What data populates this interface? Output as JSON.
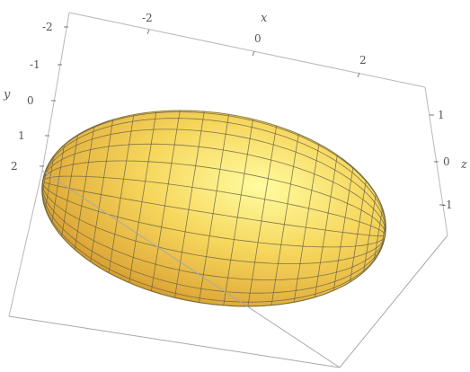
{
  "chart_data": {
    "type": "surface3d",
    "surface": "ellipsoid",
    "x": {
      "label": "x",
      "ticks": [
        "-2",
        "0",
        "2"
      ]
    },
    "y": {
      "label": "y",
      "ticks": [
        "-2",
        "-1",
        "0",
        "1",
        "2"
      ]
    },
    "z": {
      "label": "z",
      "ticks": [
        "1",
        "0",
        "-1"
      ]
    },
    "mesh": {
      "latitude_lines": 22,
      "longitude_lines": 26
    },
    "colors": {
      "surface_light": "#fffca0",
      "surface_mid": "#f6d65c",
      "surface_dark": "#d49a2c",
      "mesh": "#6b6446",
      "box": "#b8b8b8"
    }
  }
}
